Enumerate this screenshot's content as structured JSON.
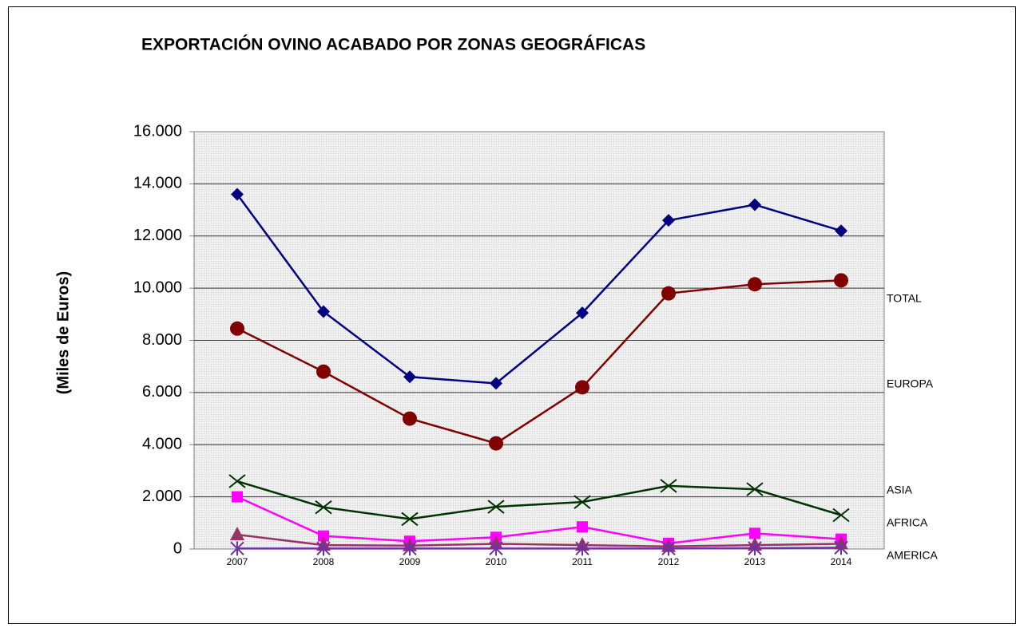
{
  "chart_data": {
    "type": "line",
    "title": "EXPORTACIÓN OVINO ACABADO POR ZONAS GEOGRÁFICAS",
    "y_label": "(Miles de Euros)",
    "categories": [
      "2007",
      "2008",
      "2009",
      "2010",
      "2011",
      "2012",
      "2013",
      "2014"
    ],
    "ylim": [
      0,
      16000
    ],
    "yticks": [
      0,
      {
        "value": 2000,
        "label": "2.000"
      },
      {
        "value": 4000,
        "label": "4.000"
      },
      {
        "value": 6000,
        "label": "6.000"
      },
      {
        "value": 8000,
        "label": "8.000"
      },
      {
        "value": 10000,
        "label": "10.000"
      },
      {
        "value": 12000,
        "label": "12.000"
      },
      {
        "value": 14000,
        "label": "14.000"
      },
      {
        "value": 16000,
        "label": "16.000"
      }
    ],
    "grid": true,
    "series": [
      {
        "name": "TOTAL",
        "color": "#000080",
        "marker": "diamond",
        "values": [
          13600,
          9100,
          6600,
          6350,
          9050,
          12600,
          13200,
          12200
        ]
      },
      {
        "name": "EUROPA",
        "color": "#800000",
        "marker": "circle",
        "values": [
          8450,
          6800,
          5000,
          4050,
          6200,
          9800,
          10150,
          10300
        ]
      },
      {
        "name": "ASIA",
        "color": "#003300",
        "marker": "x",
        "values": [
          2600,
          1600,
          1150,
          1620,
          1800,
          2420,
          2290,
          1300
        ]
      },
      {
        "name": "AFRICA",
        "color": "#ff00ff",
        "marker": "square",
        "values": [
          2000,
          500,
          300,
          450,
          850,
          220,
          600,
          380
        ]
      },
      {
        "color": "#993366",
        "marker": "triangle",
        "values": [
          550,
          150,
          130,
          200,
          150,
          100,
          150,
          200
        ]
      },
      {
        "name": "AMERICA",
        "color": "#7030a0",
        "marker": "star",
        "values": [
          20,
          20,
          20,
          20,
          20,
          20,
          30,
          50
        ]
      }
    ]
  }
}
